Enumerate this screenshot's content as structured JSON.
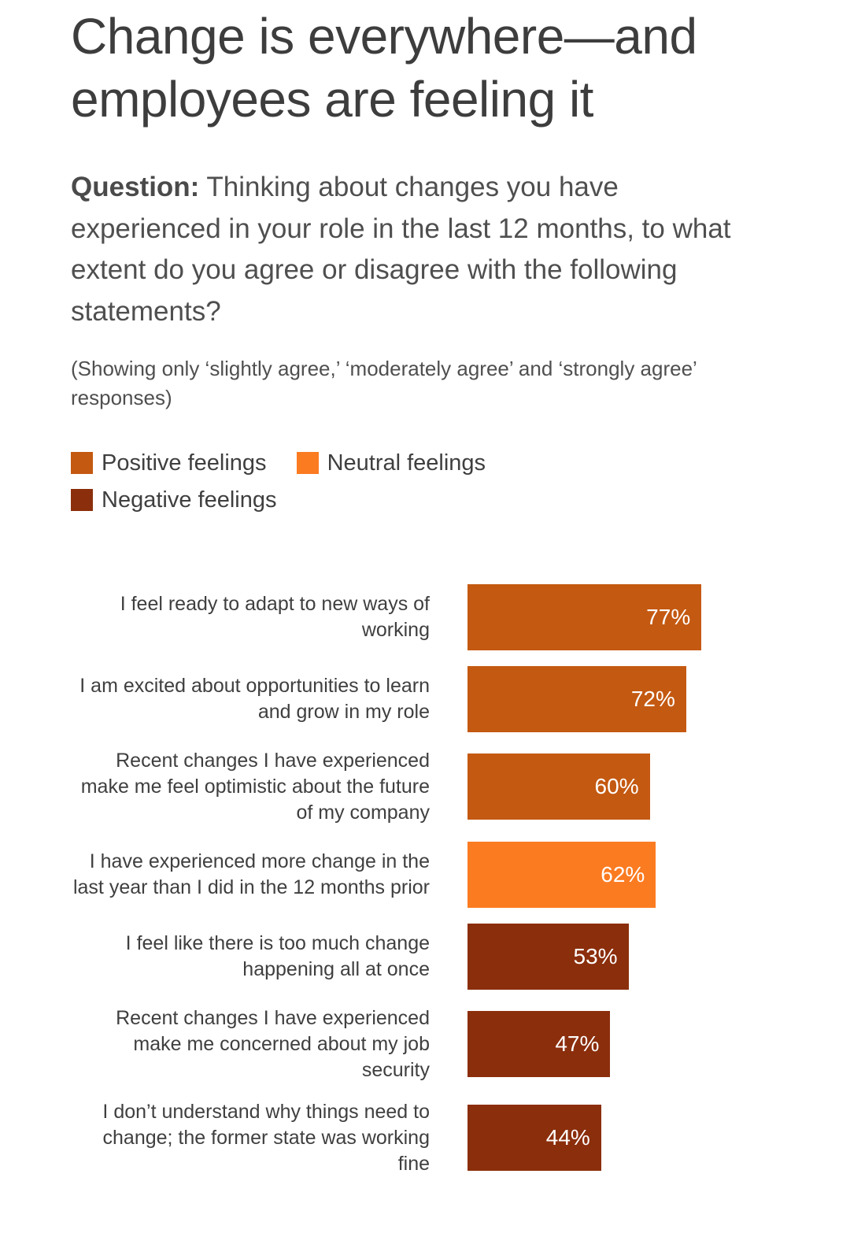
{
  "page": {
    "title": "Change is everywhere—and employees are feeling it"
  },
  "question": {
    "label": "Question:",
    "text": " Thinking about changes you have experienced in your role in the last 12 months, to what extent do you agree or disagree with the following statements?"
  },
  "note": "(Showing only ‘slightly agree,’ ‘moderately agree’ and ‘strongly agree’ responses)",
  "chart_data": {
    "type": "bar",
    "orientation": "horizontal",
    "value_unit": "%",
    "xlim": [
      0,
      100
    ],
    "grid": false,
    "legend_position": "top",
    "legend": [
      {
        "key": "positive",
        "label": "Positive feelings",
        "color": "#c45911"
      },
      {
        "key": "neutral",
        "label": "Neutral feelings",
        "color": "#fb7b21"
      },
      {
        "key": "negative",
        "label": "Negative feelings",
        "color": "#8b2e0c"
      }
    ],
    "rows": [
      {
        "label": "I feel ready to adapt to new ways of working",
        "value": 77,
        "category": "positive"
      },
      {
        "label": "I am excited about opportunities to learn and grow in my role",
        "value": 72,
        "category": "positive"
      },
      {
        "label": "Recent changes I have experienced make me feel optimistic about the future of my company",
        "value": 60,
        "category": "positive"
      },
      {
        "label": "I have experienced more change in the last year than I did in the 12 months prior",
        "value": 62,
        "category": "neutral"
      },
      {
        "label": "I feel like there is too much change happening all at once",
        "value": 53,
        "category": "negative"
      },
      {
        "label": "Recent changes I have experienced make me concerned about my job security",
        "value": 47,
        "category": "negative"
      },
      {
        "label": "I don’t understand why things need to change; the former state was working fine",
        "value": 44,
        "category": "negative"
      }
    ]
  }
}
